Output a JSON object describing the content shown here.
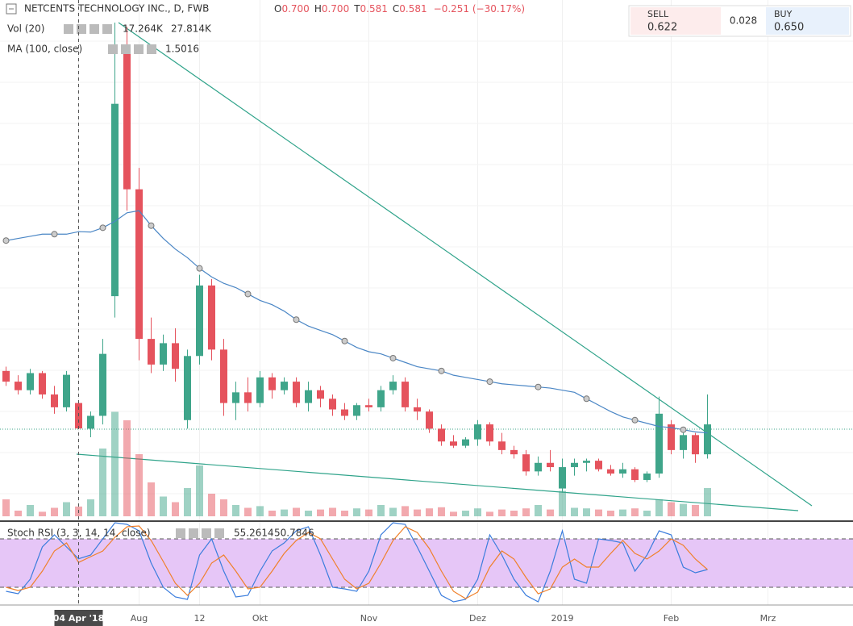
{
  "chart_data": {
    "type": "candlestick",
    "title": "NETCENTS TECHNOLOGY INC., D, FWB",
    "ohlc_legend": [
      {
        "label": "O",
        "value": "0.700"
      },
      {
        "label": "H",
        "value": "0.700"
      },
      {
        "label": "T",
        "value": "0.581"
      },
      {
        "label": "C",
        "value": "0.581"
      }
    ],
    "change": "−0.251 (−30.17%)",
    "quote": {
      "sell_label": "SELL",
      "sell": "0.622",
      "spread": "0.028",
      "buy_label": "BUY",
      "buy": "0.650"
    },
    "categories": [
      null,
      null,
      null,
      null,
      null,
      null,
      "04 Apr '18",
      null,
      null,
      null,
      null,
      "Aug",
      null,
      null,
      null,
      null,
      "12",
      null,
      null,
      null,
      null,
      "Okt",
      null,
      null,
      null,
      null,
      null,
      null,
      null,
      null,
      "Nov",
      null,
      null,
      null,
      null,
      null,
      null,
      null,
      null,
      "Dez",
      null,
      null,
      null,
      null,
      null,
      null,
      "2019",
      null,
      null,
      null,
      null,
      null,
      null,
      null,
      null,
      "Feb",
      null,
      null,
      null,
      null,
      null,
      null,
      null,
      "Mrz",
      null,
      null,
      null,
      null,
      null,
      null
    ],
    "open": [
      0.85,
      0.8,
      0.76,
      0.84,
      0.74,
      0.68,
      0.7,
      0.58,
      0.64,
      1.2,
      2.36,
      1.7,
      1.0,
      0.88,
      0.98,
      0.62,
      0.92,
      1.25,
      0.95,
      0.7,
      0.75,
      0.7,
      0.82,
      0.76,
      0.8,
      0.7,
      0.76,
      0.72,
      0.67,
      0.64,
      0.69,
      0.68,
      0.76,
      0.8,
      0.68,
      0.66,
      0.58,
      0.52,
      0.5,
      0.53,
      0.6,
      0.52,
      0.48,
      0.46,
      0.38,
      0.42,
      0.3,
      0.4,
      0.42,
      0.43,
      0.39,
      0.37,
      0.39,
      0.34,
      0.37,
      0.6,
      0.48,
      0.55,
      0.46,
      null,
      null,
      null,
      null,
      null,
      null,
      null,
      null,
      null,
      null,
      null
    ],
    "high": [
      0.87,
      0.83,
      0.86,
      0.85,
      0.78,
      0.85,
      0.7,
      0.66,
      1.0,
      2.48,
      2.46,
      1.8,
      1.1,
      1.02,
      1.05,
      0.95,
      1.3,
      1.28,
      1.0,
      0.8,
      0.82,
      0.85,
      0.84,
      0.82,
      0.82,
      0.8,
      0.78,
      0.74,
      0.7,
      0.7,
      0.72,
      0.78,
      0.83,
      0.82,
      0.72,
      0.67,
      0.6,
      0.55,
      0.54,
      0.62,
      0.61,
      0.56,
      0.5,
      0.48,
      0.45,
      0.48,
      0.44,
      0.44,
      0.44,
      0.44,
      0.41,
      0.42,
      0.4,
      0.38,
      0.73,
      0.62,
      0.58,
      0.56,
      0.74,
      null,
      null,
      null,
      null,
      null,
      null,
      null,
      null,
      null,
      null,
      null
    ],
    "low": [
      0.78,
      0.74,
      0.74,
      0.72,
      0.65,
      0.66,
      0.581,
      0.54,
      0.6,
      1.1,
      1.6,
      0.9,
      0.84,
      0.85,
      0.8,
      0.58,
      0.88,
      0.9,
      0.64,
      0.62,
      0.66,
      0.68,
      0.72,
      0.74,
      0.68,
      0.66,
      0.68,
      0.64,
      0.62,
      0.62,
      0.66,
      0.66,
      0.74,
      0.66,
      0.62,
      0.56,
      0.5,
      0.49,
      0.49,
      0.5,
      0.5,
      0.46,
      0.44,
      0.36,
      0.36,
      0.38,
      0.28,
      0.36,
      0.38,
      0.38,
      0.36,
      0.35,
      0.33,
      0.33,
      0.35,
      0.46,
      0.44,
      0.42,
      0.44,
      null,
      null,
      null,
      null,
      null,
      null,
      null,
      null,
      null,
      null,
      null
    ],
    "close": [
      0.8,
      0.76,
      0.84,
      0.74,
      0.68,
      0.832,
      0.581,
      0.64,
      0.93,
      2.1,
      1.7,
      1.0,
      0.88,
      0.98,
      0.86,
      0.92,
      1.25,
      0.95,
      0.7,
      0.75,
      0.7,
      0.82,
      0.76,
      0.8,
      0.7,
      0.76,
      0.72,
      0.67,
      0.64,
      0.69,
      0.68,
      0.76,
      0.8,
      0.68,
      0.66,
      0.58,
      0.52,
      0.5,
      0.53,
      0.6,
      0.52,
      0.48,
      0.46,
      0.38,
      0.42,
      0.4,
      0.4,
      0.42,
      0.43,
      0.39,
      0.37,
      0.39,
      0.34,
      0.37,
      0.65,
      0.48,
      0.55,
      0.46,
      0.6,
      null,
      null,
      null,
      null,
      null,
      null,
      null,
      null,
      null,
      null,
      null
    ],
    "ylim": [
      0.17,
      2.48
    ],
    "colors": {
      "up": "#3fa58a",
      "down": "#e5535d"
    },
    "volume": {
      "title": "Vol (20)",
      "legend_values": [
        "17.264K",
        "27.814K"
      ],
      "ylim": [
        0,
        200000
      ],
      "values": [
        30000,
        10000,
        20000,
        8000,
        15000,
        25000,
        17264,
        30000,
        120000,
        185000,
        170000,
        110000,
        60000,
        35000,
        25000,
        50000,
        90000,
        40000,
        30000,
        20000,
        15000,
        18000,
        10000,
        12000,
        15000,
        10000,
        12000,
        15000,
        10000,
        14000,
        12000,
        20000,
        15000,
        18000,
        12000,
        14000,
        16000,
        8000,
        10000,
        14000,
        8000,
        12000,
        10000,
        14000,
        20000,
        12000,
        45000,
        15000,
        14000,
        12000,
        10000,
        12000,
        14000,
        10000,
        30000,
        25000,
        22000,
        20000,
        50000,
        null,
        null,
        null,
        null,
        null,
        null,
        null,
        null,
        null,
        null,
        null
      ]
    },
    "ma": {
      "title": "MA (100, close)",
      "color": "#4a86c5",
      "values": [
        1.46,
        1.47,
        1.48,
        1.49,
        1.49,
        1.49,
        1.5016,
        1.5,
        1.52,
        1.55,
        1.59,
        1.6,
        1.53,
        1.47,
        1.42,
        1.38,
        1.33,
        1.29,
        1.26,
        1.24,
        1.21,
        1.18,
        1.16,
        1.13,
        1.09,
        1.06,
        1.04,
        1.02,
        0.99,
        0.96,
        0.94,
        0.93,
        0.91,
        0.89,
        0.87,
        0.86,
        0.85,
        0.83,
        0.82,
        0.81,
        0.8,
        0.79,
        0.785,
        0.78,
        0.775,
        0.77,
        0.76,
        0.75,
        0.72,
        0.69,
        0.66,
        0.635,
        0.62,
        0.605,
        0.59,
        0.585,
        0.575,
        0.565,
        0.56,
        null,
        null,
        null,
        null,
        null,
        null,
        null,
        null,
        null,
        null,
        null
      ]
    },
    "stoch_rsi": {
      "title": "Stoch RSI (3, 3, 14, 14, close)",
      "ylim": [
        0,
        100
      ],
      "bands": [
        20,
        80
      ],
      "series": [
        {
          "color": "#3b7ddd",
          "values": [
            15,
            12,
            30,
            70,
            85,
            70,
            55.2614,
            60,
            80,
            100,
            98,
            90,
            50,
            20,
            8,
            5,
            60,
            80,
            40,
            8,
            10,
            40,
            65,
            75,
            90,
            95,
            60,
            20,
            18,
            15,
            40,
            85,
            100,
            98,
            70,
            40,
            10,
            2,
            5,
            30,
            85,
            60,
            30,
            10,
            2,
            40,
            90,
            30,
            25,
            80,
            78,
            75,
            40,
            60,
            90,
            85,
            45,
            38,
            42,
            null,
            null,
            null,
            null,
            null,
            null,
            null,
            null,
            null,
            null,
            null
          ]
        },
        {
          "color": "#f0802a",
          "values": [
            20,
            16,
            20,
            40,
            65,
            75,
            50.7846,
            58,
            65,
            82,
            95,
            96,
            78,
            52,
            25,
            10,
            25,
            50,
            60,
            40,
            18,
            20,
            40,
            62,
            78,
            88,
            80,
            55,
            30,
            18,
            25,
            50,
            78,
            95,
            88,
            68,
            40,
            15,
            6,
            14,
            45,
            65,
            55,
            32,
            12,
            18,
            45,
            55,
            45,
            45,
            62,
            78,
            62,
            55,
            65,
            80,
            72,
            55,
            42,
            null,
            null,
            null,
            null,
            null,
            null,
            null,
            null,
            null,
            null,
            null
          ]
        }
      ]
    }
  }
}
